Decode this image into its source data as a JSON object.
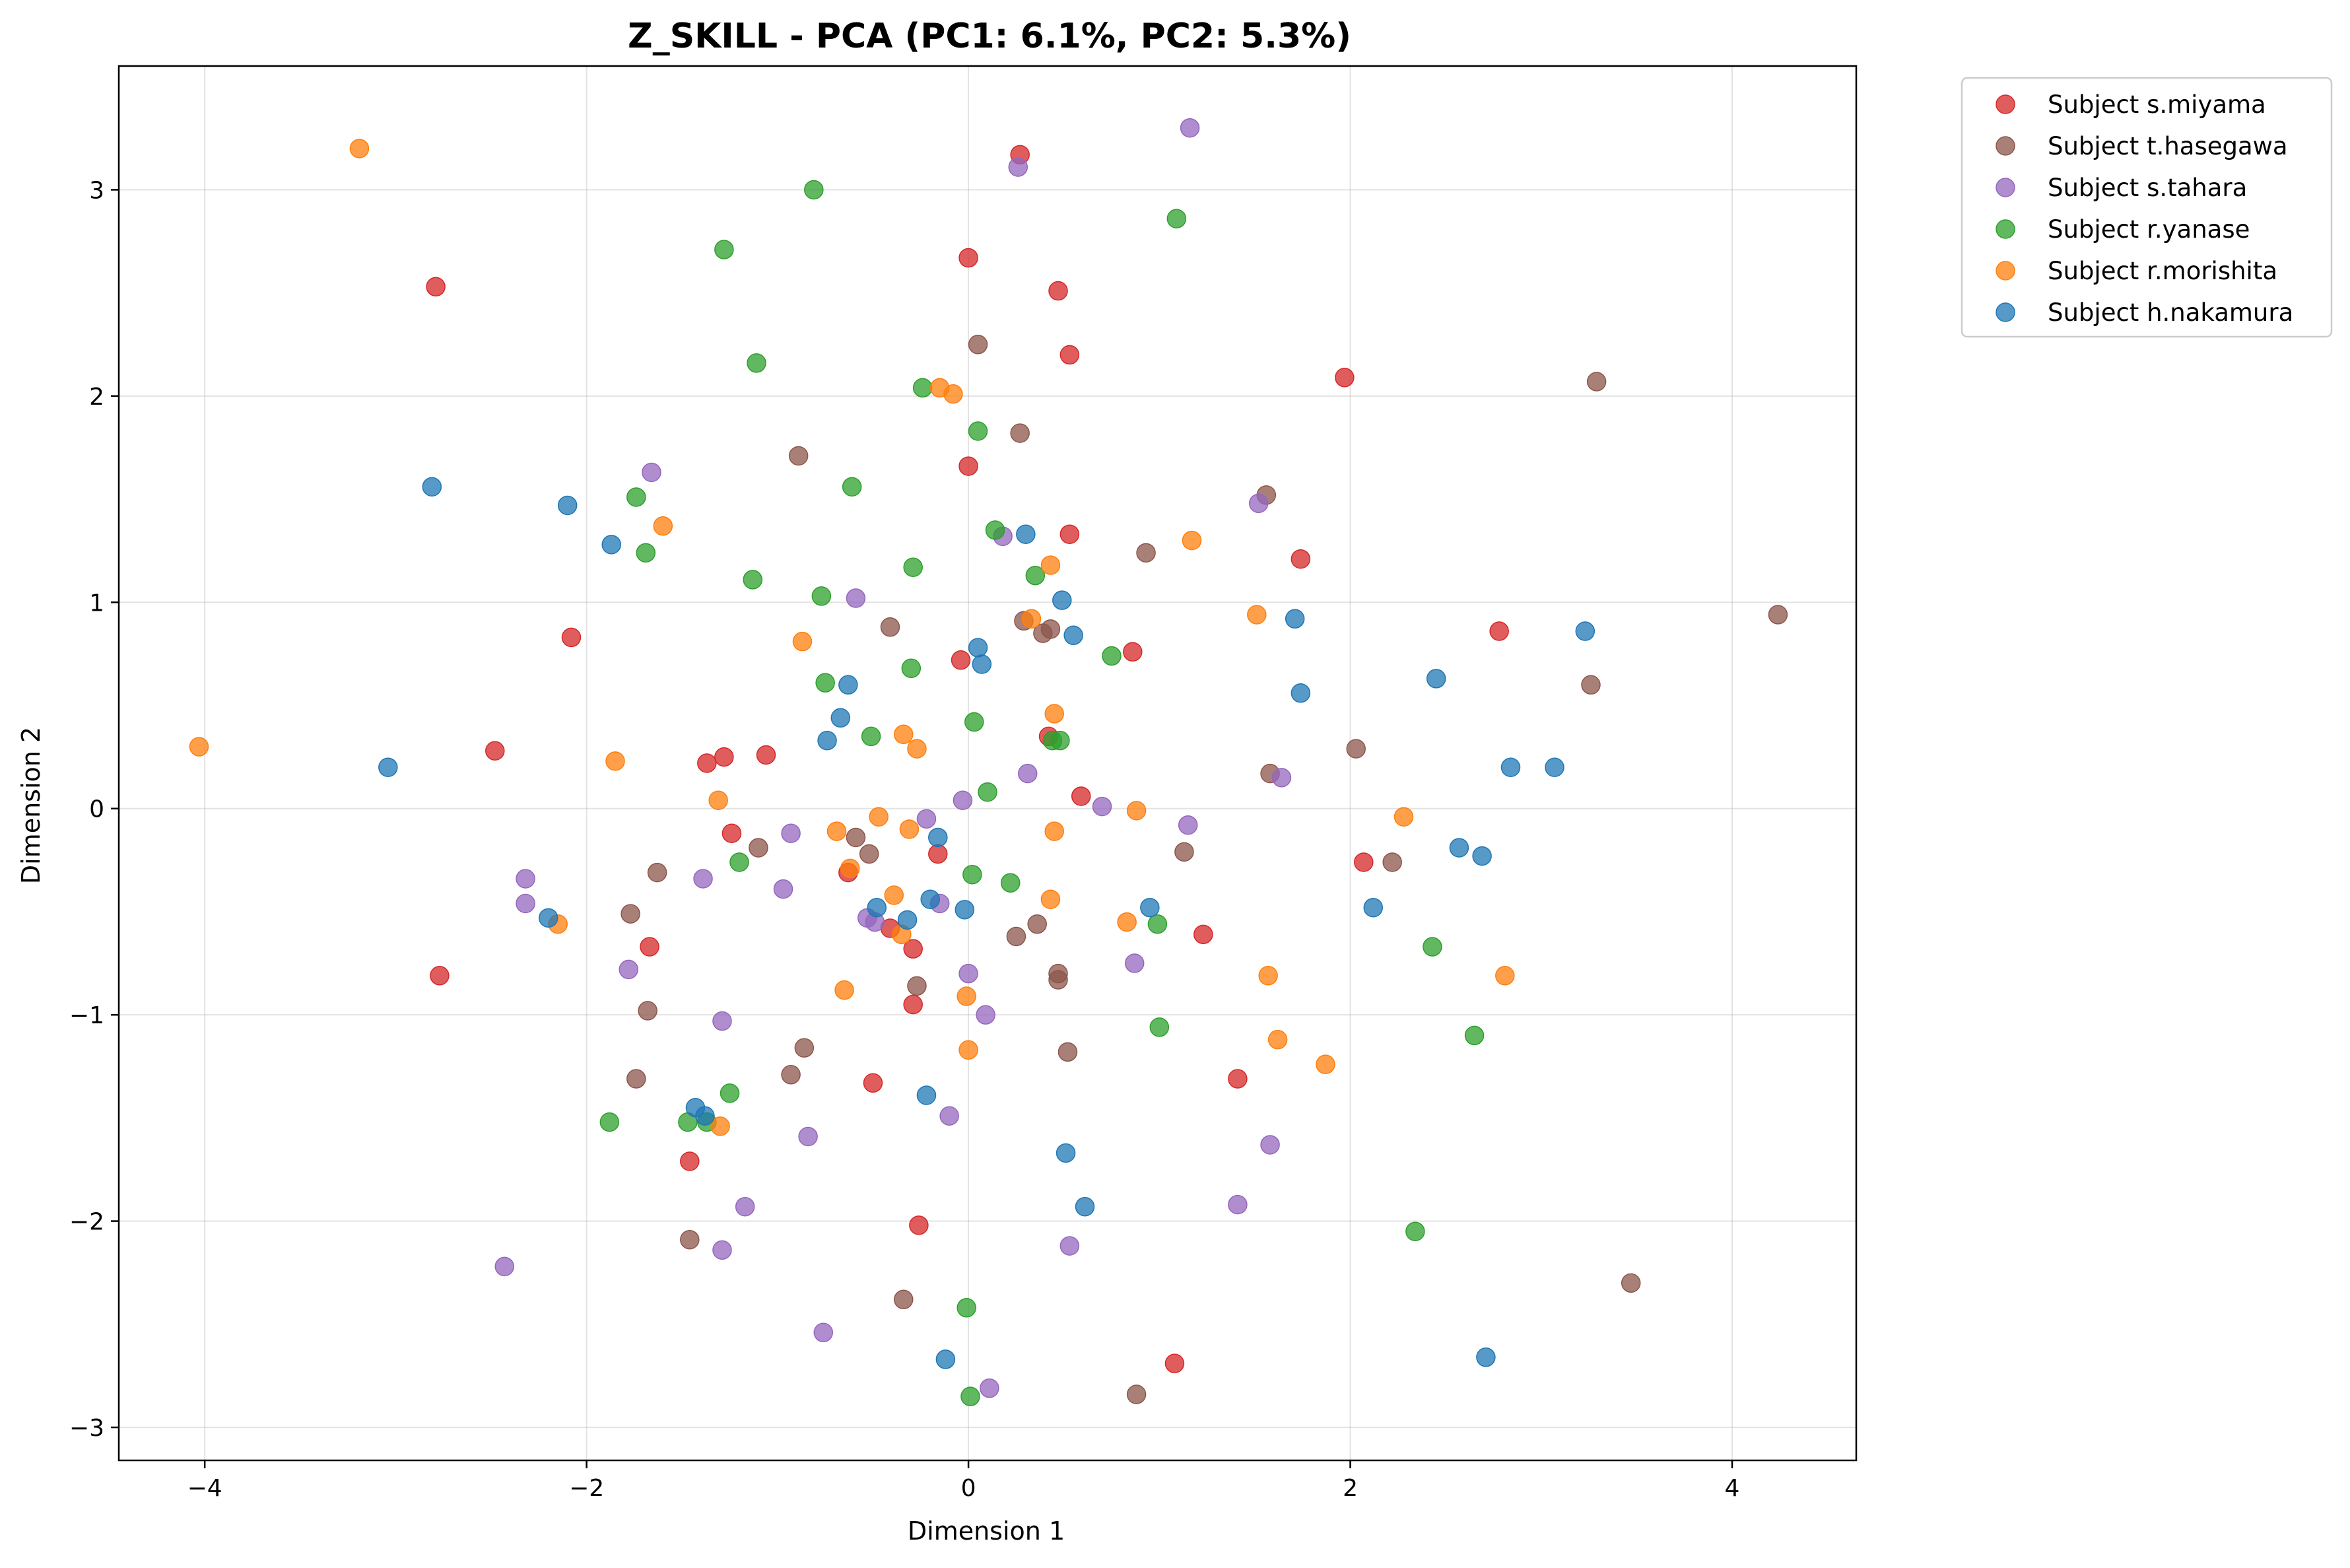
{
  "chart_data": {
    "type": "scatter",
    "title": "Z_SKILL - PCA (PC1: 6.1%, PC2: 5.3%)",
    "xlabel": "Dimension 1",
    "ylabel": "Dimension 2",
    "xlim": [
      -4.45,
      4.65
    ],
    "ylim": [
      -3.16,
      3.6
    ],
    "xticks": [
      -4,
      -2,
      0,
      2,
      4
    ],
    "yticks": [
      -3,
      -2,
      -1,
      0,
      1,
      2,
      3
    ],
    "xtick_labels": [
      "−4",
      "−2",
      "0",
      "2",
      "4"
    ],
    "ytick_labels": [
      "−3",
      "−2",
      "−1",
      "0",
      "1",
      "2",
      "3"
    ],
    "grid": true,
    "legend_position": "outside-top-right",
    "series": [
      {
        "name": "Subject s.miyama",
        "color": "#d62728",
        "points": [
          [
            0.27,
            3.17
          ],
          [
            0.0,
            2.67
          ],
          [
            -2.79,
            2.53
          ],
          [
            0.47,
            2.51
          ],
          [
            0.53,
            2.2
          ],
          [
            1.97,
            2.09
          ],
          [
            0.0,
            1.66
          ],
          [
            0.53,
            1.33
          ],
          [
            1.74,
            1.21
          ],
          [
            -2.08,
            0.83
          ],
          [
            2.78,
            0.86
          ],
          [
            0.86,
            0.76
          ],
          [
            -0.04,
            0.72
          ],
          [
            -2.48,
            0.28
          ],
          [
            0.42,
            0.35
          ],
          [
            -1.37,
            0.22
          ],
          [
            -1.28,
            0.25
          ],
          [
            -1.06,
            0.26
          ],
          [
            0.59,
            0.06
          ],
          [
            -1.24,
            -0.12
          ],
          [
            -0.63,
            -0.31
          ],
          [
            -0.16,
            -0.22
          ],
          [
            2.07,
            -0.26
          ],
          [
            -0.41,
            -0.58
          ],
          [
            -0.29,
            -0.68
          ],
          [
            -1.67,
            -0.67
          ],
          [
            1.23,
            -0.61
          ],
          [
            -2.77,
            -0.81
          ],
          [
            -0.29,
            -0.95
          ],
          [
            -0.5,
            -1.33
          ],
          [
            1.41,
            -1.31
          ],
          [
            -1.46,
            -1.71
          ],
          [
            -0.26,
            -2.02
          ],
          [
            1.08,
            -2.69
          ]
        ]
      },
      {
        "name": "Subject t.hasegawa",
        "color": "#8c564b",
        "points": [
          [
            0.05,
            2.25
          ],
          [
            3.29,
            2.07
          ],
          [
            -0.89,
            1.71
          ],
          [
            0.27,
            1.82
          ],
          [
            1.56,
            1.52
          ],
          [
            0.93,
            1.24
          ],
          [
            4.24,
            0.94
          ],
          [
            -0.41,
            0.88
          ],
          [
            0.29,
            0.91
          ],
          [
            0.39,
            0.85
          ],
          [
            0.43,
            0.87
          ],
          [
            3.26,
            0.6
          ],
          [
            2.03,
            0.29
          ],
          [
            1.58,
            0.17
          ],
          [
            -0.59,
            -0.14
          ],
          [
            -1.1,
            -0.19
          ],
          [
            -0.52,
            -0.22
          ],
          [
            1.13,
            -0.21
          ],
          [
            2.22,
            -0.26
          ],
          [
            -1.63,
            -0.31
          ],
          [
            -1.77,
            -0.51
          ],
          [
            0.36,
            -0.56
          ],
          [
            0.25,
            -0.62
          ],
          [
            -0.27,
            -0.86
          ],
          [
            0.47,
            -0.8
          ],
          [
            0.47,
            -0.83
          ],
          [
            -1.68,
            -0.98
          ],
          [
            -0.86,
            -1.16
          ],
          [
            0.52,
            -1.18
          ],
          [
            -0.93,
            -1.29
          ],
          [
            -1.74,
            -1.31
          ],
          [
            -1.46,
            -2.09
          ],
          [
            -0.34,
            -2.38
          ],
          [
            3.47,
            -2.3
          ],
          [
            0.88,
            -2.84
          ]
        ]
      },
      {
        "name": "Subject s.tahara",
        "color": "#9467bd",
        "points": [
          [
            1.16,
            3.3
          ],
          [
            0.26,
            3.11
          ],
          [
            -1.66,
            1.63
          ],
          [
            1.52,
            1.48
          ],
          [
            0.18,
            1.32
          ],
          [
            -0.59,
            1.02
          ],
          [
            0.31,
            0.17
          ],
          [
            1.64,
            0.15
          ],
          [
            -0.03,
            0.04
          ],
          [
            0.7,
            0.01
          ],
          [
            -0.22,
            -0.05
          ],
          [
            1.15,
            -0.08
          ],
          [
            -0.93,
            -0.12
          ],
          [
            -2.32,
            -0.34
          ],
          [
            -1.39,
            -0.34
          ],
          [
            -0.97,
            -0.39
          ],
          [
            -2.32,
            -0.46
          ],
          [
            -0.15,
            -0.46
          ],
          [
            -0.53,
            -0.53
          ],
          [
            -0.49,
            -0.55
          ],
          [
            0.87,
            -0.75
          ],
          [
            -1.78,
            -0.78
          ],
          [
            0.0,
            -0.8
          ],
          [
            0.09,
            -1.0
          ],
          [
            -1.29,
            -1.03
          ],
          [
            -0.1,
            -1.49
          ],
          [
            -0.84,
            -1.59
          ],
          [
            1.58,
            -1.63
          ],
          [
            -1.17,
            -1.93
          ],
          [
            1.41,
            -1.92
          ],
          [
            -1.29,
            -2.14
          ],
          [
            0.53,
            -2.12
          ],
          [
            -2.43,
            -2.22
          ],
          [
            -0.76,
            -2.54
          ],
          [
            0.11,
            -2.81
          ]
        ]
      },
      {
        "name": "Subject r.yanase",
        "color": "#2ca02c",
        "points": [
          [
            -0.81,
            3.0
          ],
          [
            1.09,
            2.86
          ],
          [
            -1.28,
            2.71
          ],
          [
            -1.11,
            2.16
          ],
          [
            -0.24,
            2.04
          ],
          [
            0.05,
            1.83
          ],
          [
            -1.74,
            1.51
          ],
          [
            -0.61,
            1.56
          ],
          [
            0.14,
            1.35
          ],
          [
            -1.69,
            1.24
          ],
          [
            -0.29,
            1.17
          ],
          [
            -1.13,
            1.11
          ],
          [
            0.35,
            1.13
          ],
          [
            -0.77,
            1.03
          ],
          [
            0.75,
            0.74
          ],
          [
            -0.3,
            0.68
          ],
          [
            -0.75,
            0.61
          ],
          [
            0.03,
            0.42
          ],
          [
            -0.51,
            0.35
          ],
          [
            0.44,
            0.33
          ],
          [
            0.48,
            0.33
          ],
          [
            0.1,
            0.08
          ],
          [
            -1.2,
            -0.26
          ],
          [
            0.02,
            -0.32
          ],
          [
            0.22,
            -0.36
          ],
          [
            0.99,
            -0.56
          ],
          [
            2.43,
            -0.67
          ],
          [
            1.0,
            -1.06
          ],
          [
            2.65,
            -1.1
          ],
          [
            -1.25,
            -1.38
          ],
          [
            -1.88,
            -1.52
          ],
          [
            -1.47,
            -1.52
          ],
          [
            -1.37,
            -1.52
          ],
          [
            2.34,
            -2.05
          ],
          [
            -0.01,
            -2.42
          ],
          [
            0.01,
            -2.85
          ]
        ]
      },
      {
        "name": "Subject r.morishita",
        "color": "#ff7f0e",
        "points": [
          [
            -3.19,
            3.2
          ],
          [
            -0.15,
            2.04
          ],
          [
            -0.08,
            2.01
          ],
          [
            -1.6,
            1.37
          ],
          [
            1.17,
            1.3
          ],
          [
            0.43,
            1.18
          ],
          [
            1.51,
            0.94
          ],
          [
            0.33,
            0.92
          ],
          [
            -0.87,
            0.81
          ],
          [
            -4.03,
            0.3
          ],
          [
            -0.34,
            0.36
          ],
          [
            -0.27,
            0.29
          ],
          [
            0.45,
            0.46
          ],
          [
            -1.85,
            0.23
          ],
          [
            -1.31,
            0.04
          ],
          [
            -0.47,
            -0.04
          ],
          [
            2.28,
            -0.04
          ],
          [
            0.88,
            -0.01
          ],
          [
            -0.69,
            -0.11
          ],
          [
            -0.31,
            -0.1
          ],
          [
            0.45,
            -0.11
          ],
          [
            -0.62,
            -0.29
          ],
          [
            -0.39,
            -0.42
          ],
          [
            0.43,
            -0.44
          ],
          [
            0.83,
            -0.55
          ],
          [
            -2.15,
            -0.56
          ],
          [
            -0.35,
            -0.61
          ],
          [
            1.57,
            -0.81
          ],
          [
            2.81,
            -0.81
          ],
          [
            -0.65,
            -0.88
          ],
          [
            -0.01,
            -0.91
          ],
          [
            1.62,
            -1.12
          ],
          [
            0.0,
            -1.17
          ],
          [
            1.87,
            -1.24
          ],
          [
            -1.3,
            -1.54
          ]
        ]
      },
      {
        "name": "Subject h.nakamura",
        "color": "#1f77b4",
        "points": [
          [
            -2.81,
            1.56
          ],
          [
            -2.1,
            1.47
          ],
          [
            0.3,
            1.33
          ],
          [
            -1.87,
            1.28
          ],
          [
            0.49,
            1.01
          ],
          [
            1.71,
            0.92
          ],
          [
            0.55,
            0.84
          ],
          [
            3.23,
            0.86
          ],
          [
            0.05,
            0.78
          ],
          [
            0.07,
            0.7
          ],
          [
            -0.63,
            0.6
          ],
          [
            2.45,
            0.63
          ],
          [
            1.74,
            0.56
          ],
          [
            -0.67,
            0.44
          ],
          [
            -0.74,
            0.33
          ],
          [
            -3.04,
            0.2
          ],
          [
            2.84,
            0.2
          ],
          [
            3.07,
            0.2
          ],
          [
            -0.16,
            -0.14
          ],
          [
            2.57,
            -0.19
          ],
          [
            2.69,
            -0.23
          ],
          [
            -0.2,
            -0.44
          ],
          [
            -0.48,
            -0.48
          ],
          [
            0.95,
            -0.48
          ],
          [
            2.12,
            -0.48
          ],
          [
            -0.02,
            -0.49
          ],
          [
            -2.2,
            -0.53
          ],
          [
            -0.32,
            -0.54
          ],
          [
            -0.22,
            -1.39
          ],
          [
            -1.43,
            -1.45
          ],
          [
            -1.38,
            -1.49
          ],
          [
            0.51,
            -1.67
          ],
          [
            0.61,
            -1.93
          ],
          [
            -0.12,
            -2.67
          ],
          [
            2.71,
            -2.66
          ]
        ]
      }
    ]
  }
}
